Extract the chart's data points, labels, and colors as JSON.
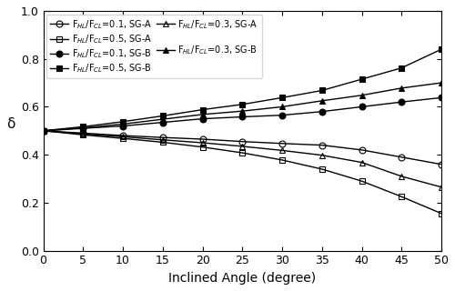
{
  "x": [
    0,
    5,
    10,
    15,
    20,
    25,
    30,
    35,
    40,
    45,
    50
  ],
  "series": {
    "FHL_01_SGA": [
      0.5,
      0.49,
      0.48,
      0.472,
      0.465,
      0.455,
      0.447,
      0.44,
      0.42,
      0.39,
      0.36
    ],
    "FHL_01_SGB": [
      0.5,
      0.51,
      0.52,
      0.535,
      0.55,
      0.558,
      0.565,
      0.58,
      0.6,
      0.62,
      0.638
    ],
    "FHL_03_SGA": [
      0.5,
      0.487,
      0.475,
      0.462,
      0.45,
      0.435,
      0.418,
      0.398,
      0.368,
      0.31,
      0.265
    ],
    "FHL_03_SGB": [
      0.5,
      0.512,
      0.528,
      0.548,
      0.568,
      0.582,
      0.6,
      0.625,
      0.648,
      0.678,
      0.7
    ],
    "FHL_05_SGA": [
      0.5,
      0.483,
      0.468,
      0.452,
      0.432,
      0.408,
      0.378,
      0.34,
      0.29,
      0.225,
      0.155
    ],
    "FHL_05_SGB": [
      0.5,
      0.517,
      0.538,
      0.562,
      0.588,
      0.61,
      0.638,
      0.668,
      0.715,
      0.762,
      0.84
    ]
  },
  "plot_order": [
    "FHL_01_SGA",
    "FHL_01_SGB",
    "FHL_03_SGA",
    "FHL_03_SGB",
    "FHL_05_SGA",
    "FHL_05_SGB"
  ],
  "legend_order": [
    "FHL_01_SGA",
    "FHL_05_SGA",
    "FHL_01_SGB",
    "FHL_05_SGB",
    "FHL_03_SGA",
    "FHL_03_SGB"
  ],
  "styles": {
    "FHL_01_SGA": {
      "marker": "o",
      "fillstyle": "none",
      "label": "F$_{HL}$/F$_{CL}$=0.1, SG-A"
    },
    "FHL_01_SGB": {
      "marker": "o",
      "fillstyle": "full",
      "label": "F$_{HL}$/F$_{CL}$=0.1, SG-B"
    },
    "FHL_03_SGA": {
      "marker": "^",
      "fillstyle": "none",
      "label": "F$_{HL}$/F$_{CL}$=0.3, SG-A"
    },
    "FHL_03_SGB": {
      "marker": "^",
      "fillstyle": "full",
      "label": "F$_{HL}$/F$_{CL}$=0.3, SG-B"
    },
    "FHL_05_SGA": {
      "marker": "s",
      "fillstyle": "none",
      "label": "F$_{HL}$/F$_{CL}$=0.5, SG-A"
    },
    "FHL_05_SGB": {
      "marker": "s",
      "fillstyle": "full",
      "label": "F$_{HL}$/F$_{CL}$=0.5, SG-B"
    }
  },
  "xlabel": "Inclined Angle (degree)",
  "ylabel": "δ",
  "xlim": [
    0,
    50
  ],
  "ylim": [
    0.0,
    1.0
  ],
  "xticks": [
    0,
    5,
    10,
    15,
    20,
    25,
    30,
    35,
    40,
    45,
    50
  ],
  "yticks": [
    0.0,
    0.2,
    0.4,
    0.6,
    0.8,
    1.0
  ],
  "markersize": 5,
  "linewidth": 1.0,
  "legend_fontsize": 7.0,
  "xlabel_fontsize": 10,
  "ylabel_fontsize": 11,
  "tick_labelsize": 9
}
